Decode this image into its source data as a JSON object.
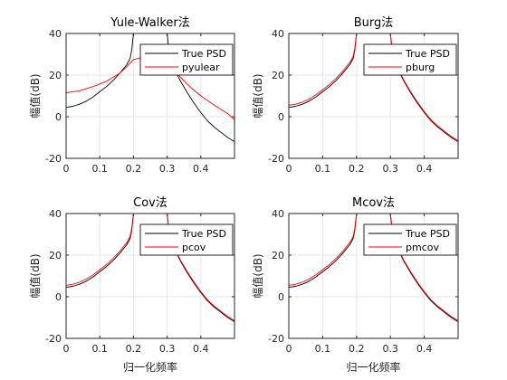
{
  "chart_data": [
    {
      "type": "line",
      "title": "Yule-Walker法",
      "xlabel": "",
      "ylabel": "幅值(dB)",
      "xlim": [
        0,
        0.5
      ],
      "ylim": [
        -20,
        40
      ],
      "xticks": [
        "0",
        "0.1",
        "0.2",
        "0.3",
        "0.4"
      ],
      "yticks": [
        "-20",
        "0",
        "20",
        "40"
      ],
      "grid": true,
      "legend_position": "top-right",
      "series": [
        {
          "name": "True PSD",
          "color": "#000000",
          "x": [
            0,
            0.02,
            0.04,
            0.06,
            0.08,
            0.1,
            0.12,
            0.14,
            0.16,
            0.18,
            0.19,
            0.195,
            0.2,
            0.205,
            0.25,
            0.295,
            0.3,
            0.305,
            0.31,
            0.32,
            0.34,
            0.36,
            0.38,
            0.4,
            0.42,
            0.44,
            0.46,
            0.48,
            0.5
          ],
          "y": [
            4.5,
            5,
            6,
            7.5,
            9.5,
            12,
            14.5,
            17.5,
            21,
            25,
            28,
            32,
            40,
            40,
            40,
            40,
            40,
            32,
            28,
            23.5,
            17,
            11.5,
            6.5,
            2,
            -2,
            -5,
            -7.5,
            -10,
            -12
          ]
        },
        {
          "name": "pyulear",
          "color": "#ff0000",
          "x": [
            0,
            0.04,
            0.08,
            0.12,
            0.16,
            0.18,
            0.2,
            0.25,
            0.3,
            0.32,
            0.36,
            0.4,
            0.44,
            0.48,
            0.5
          ],
          "y": [
            11.5,
            12.5,
            14.5,
            17,
            21,
            24,
            27.5,
            29.5,
            27.5,
            22.5,
            15.5,
            10,
            5.5,
            1.5,
            -1.5
          ]
        }
      ]
    },
    {
      "type": "line",
      "title": "Burg法",
      "xlabel": "",
      "ylabel": "幅值(dB)",
      "xlim": [
        0,
        0.5
      ],
      "ylim": [
        -20,
        40
      ],
      "xticks": [
        "0",
        "0.1",
        "0.2",
        "0.3",
        "0.4"
      ],
      "yticks": [
        "-20",
        "0",
        "20",
        "40"
      ],
      "grid": true,
      "legend_position": "top-right",
      "series": [
        {
          "name": "True PSD",
          "color": "#000000",
          "x": [
            0,
            0.02,
            0.04,
            0.06,
            0.08,
            0.1,
            0.12,
            0.14,
            0.16,
            0.18,
            0.19,
            0.195,
            0.2,
            0.205,
            0.25,
            0.295,
            0.3,
            0.305,
            0.31,
            0.32,
            0.34,
            0.36,
            0.38,
            0.4,
            0.42,
            0.44,
            0.46,
            0.48,
            0.5
          ],
          "y": [
            4.5,
            5,
            6,
            7.5,
            9.5,
            12,
            14.5,
            17.5,
            21,
            25,
            28,
            32,
            40,
            40,
            40,
            40,
            40,
            32,
            28,
            23.5,
            17,
            11.5,
            6.5,
            2,
            -2,
            -5,
            -7.5,
            -10,
            -12
          ]
        },
        {
          "name": "pburg",
          "color": "#ff0000",
          "x": [
            0,
            0.02,
            0.04,
            0.06,
            0.08,
            0.1,
            0.12,
            0.14,
            0.16,
            0.18,
            0.19,
            0.195,
            0.2,
            0.205,
            0.25,
            0.295,
            0.3,
            0.305,
            0.31,
            0.32,
            0.34,
            0.36,
            0.38,
            0.4,
            0.42,
            0.44,
            0.46,
            0.48,
            0.5
          ],
          "y": [
            5.5,
            6,
            7,
            8.5,
            10.5,
            13,
            15.5,
            18.5,
            22,
            26,
            29,
            33,
            40,
            40,
            40,
            40,
            40,
            33,
            28.5,
            24,
            17.5,
            12,
            7,
            2.5,
            -1.5,
            -4.5,
            -7,
            -9.5,
            -11.5
          ]
        }
      ]
    },
    {
      "type": "line",
      "title": "Cov法",
      "xlabel": "归一化频率",
      "ylabel": "幅值(dB)",
      "xlim": [
        0,
        0.5
      ],
      "ylim": [
        -20,
        40
      ],
      "xticks": [
        "0",
        "0.1",
        "0.2",
        "0.3",
        "0.4"
      ],
      "yticks": [
        "-20",
        "0",
        "20",
        "40"
      ],
      "grid": true,
      "legend_position": "top-right",
      "series": [
        {
          "name": "True PSD",
          "color": "#000000",
          "x": [
            0,
            0.02,
            0.04,
            0.06,
            0.08,
            0.1,
            0.12,
            0.14,
            0.16,
            0.18,
            0.19,
            0.195,
            0.2,
            0.205,
            0.25,
            0.295,
            0.3,
            0.305,
            0.31,
            0.32,
            0.34,
            0.36,
            0.38,
            0.4,
            0.42,
            0.44,
            0.46,
            0.48,
            0.5
          ],
          "y": [
            4.5,
            5,
            6,
            7.5,
            9.5,
            12,
            14.5,
            17.5,
            21,
            25,
            28,
            32,
            40,
            40,
            40,
            40,
            40,
            32,
            28,
            23.5,
            17,
            11.5,
            6.5,
            2,
            -2,
            -5,
            -7.5,
            -10,
            -12
          ]
        },
        {
          "name": "pcov",
          "color": "#ff0000",
          "x": [
            0,
            0.02,
            0.04,
            0.06,
            0.08,
            0.1,
            0.12,
            0.14,
            0.16,
            0.18,
            0.19,
            0.195,
            0.2,
            0.205,
            0.25,
            0.295,
            0.3,
            0.305,
            0.31,
            0.32,
            0.34,
            0.36,
            0.38,
            0.4,
            0.42,
            0.44,
            0.46,
            0.48,
            0.5
          ],
          "y": [
            5.5,
            6,
            7,
            8.5,
            10.5,
            13,
            15.5,
            18.5,
            22,
            26,
            29,
            33,
            40,
            40,
            40,
            40,
            40,
            33,
            28.5,
            24,
            17.5,
            12,
            7,
            2.5,
            -1.5,
            -4.5,
            -7,
            -9.5,
            -11.5
          ]
        }
      ]
    },
    {
      "type": "line",
      "title": "Mcov法",
      "xlabel": "归一化频率",
      "ylabel": "幅值(dB)",
      "xlim": [
        0,
        0.5
      ],
      "ylim": [
        -20,
        40
      ],
      "xticks": [
        "0",
        "0.1",
        "0.2",
        "0.3",
        "0.4"
      ],
      "yticks": [
        "-20",
        "0",
        "20",
        "40"
      ],
      "grid": true,
      "legend_position": "top-right",
      "series": [
        {
          "name": "True PSD",
          "color": "#000000",
          "x": [
            0,
            0.02,
            0.04,
            0.06,
            0.08,
            0.1,
            0.12,
            0.14,
            0.16,
            0.18,
            0.19,
            0.195,
            0.2,
            0.205,
            0.25,
            0.295,
            0.3,
            0.305,
            0.31,
            0.32,
            0.34,
            0.36,
            0.38,
            0.4,
            0.42,
            0.44,
            0.46,
            0.48,
            0.5
          ],
          "y": [
            4.5,
            5,
            6,
            7.5,
            9.5,
            12,
            14.5,
            17.5,
            21,
            25,
            28,
            32,
            40,
            40,
            40,
            40,
            40,
            32,
            28,
            23.5,
            17,
            11.5,
            6.5,
            2,
            -2,
            -5,
            -7.5,
            -10,
            -12
          ]
        },
        {
          "name": "pmcov",
          "color": "#ff0000",
          "x": [
            0,
            0.02,
            0.04,
            0.06,
            0.08,
            0.1,
            0.12,
            0.14,
            0.16,
            0.18,
            0.19,
            0.195,
            0.2,
            0.205,
            0.25,
            0.295,
            0.3,
            0.305,
            0.31,
            0.32,
            0.34,
            0.36,
            0.38,
            0.4,
            0.42,
            0.44,
            0.46,
            0.48,
            0.5
          ],
          "y": [
            5.5,
            6,
            7,
            8.5,
            10.5,
            13,
            15.5,
            18.5,
            22,
            26,
            29,
            33,
            40,
            40,
            40,
            40,
            40,
            33,
            28.5,
            24,
            17.5,
            12,
            7,
            2.5,
            -1.5,
            -4.5,
            -7,
            -9.5,
            -11.5
          ]
        }
      ]
    }
  ]
}
